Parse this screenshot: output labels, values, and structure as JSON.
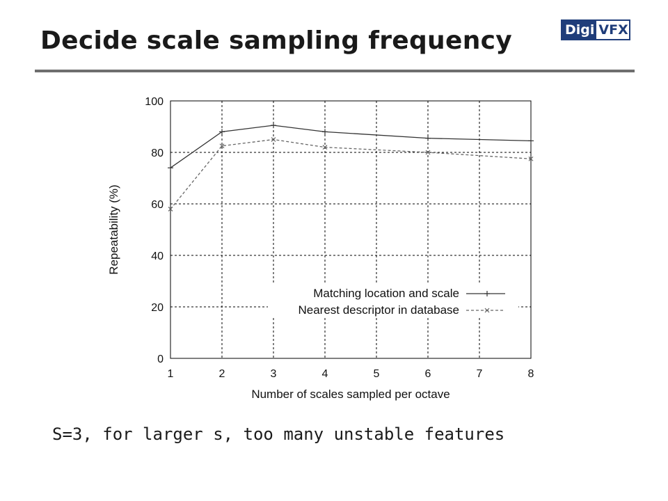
{
  "slide": {
    "title": "Decide scale sampling frequency",
    "caption": "S=3, for larger s, too many unstable features"
  },
  "logo": {
    "left_text": "Digi",
    "right_text": "VFX",
    "color": "#1f3d7a"
  },
  "chart_data": {
    "type": "line",
    "xlabel": "Number of scales sampled per octave",
    "ylabel": "Repeatability (%)",
    "x": [
      1,
      2,
      3,
      4,
      5,
      6,
      7,
      8
    ],
    "xlim": [
      1,
      8
    ],
    "ylim": [
      0,
      100
    ],
    "xticks": [
      1,
      2,
      3,
      4,
      5,
      6,
      7,
      8
    ],
    "yticks": [
      0,
      20,
      40,
      60,
      80,
      100
    ],
    "grid": true,
    "legend_position": "lower-right",
    "series": [
      {
        "name": "Matching location and scale",
        "x": [
          1,
          2,
          3,
          4,
          6,
          8
        ],
        "values": [
          74,
          88,
          90.5,
          88,
          85.5,
          84.5
        ],
        "style": "solid",
        "marker": "+",
        "color": "#333333"
      },
      {
        "name": "Nearest descriptor in database",
        "x": [
          1,
          2,
          3,
          4,
          6,
          8
        ],
        "values": [
          58,
          82.5,
          85,
          82,
          80,
          77.5
        ],
        "style": "dashed",
        "marker": "x",
        "color": "#666666"
      }
    ]
  }
}
